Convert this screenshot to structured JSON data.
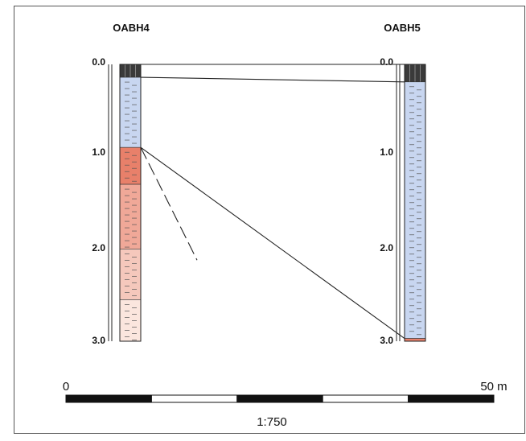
{
  "boreholes": [
    {
      "name": "OABH4",
      "depth_labels": [
        "0.0",
        "1.0",
        "2.0",
        "3.0"
      ],
      "layers": [
        {
          "from": 0.0,
          "to": 0.14,
          "material": "surface",
          "color": "#3a3a3a"
        },
        {
          "from": 0.14,
          "to": 0.9,
          "material": "silt-blue",
          "color": "#c8d6f0"
        },
        {
          "from": 0.9,
          "to": 1.3,
          "material": "clay-red",
          "color": "#e8806a"
        },
        {
          "from": 1.3,
          "to": 2.0,
          "material": "clay-red-light",
          "color": "#f0a898"
        },
        {
          "from": 2.0,
          "to": 2.55,
          "material": "clay-pink",
          "color": "#f5c8bc"
        },
        {
          "from": 2.55,
          "to": 3.0,
          "material": "sand-pale",
          "color": "#fbe6de"
        }
      ]
    },
    {
      "name": "OABH5",
      "depth_labels": [
        "0.0",
        "1.0",
        "2.0",
        "3.0"
      ],
      "layers": [
        {
          "from": 0.0,
          "to": 0.19,
          "material": "surface",
          "color": "#3a3a3a"
        },
        {
          "from": 0.19,
          "to": 2.97,
          "material": "silt-blue",
          "color": "#c8d6f0"
        },
        {
          "from": 2.97,
          "to": 3.0,
          "material": "clay-red",
          "color": "#e8806a"
        }
      ]
    }
  ],
  "correlations": [
    {
      "from_bh": 0,
      "from_depth": 0.14,
      "to_bh": 1,
      "to_depth": 0.19,
      "style": "solid"
    },
    {
      "from_bh": 0,
      "from_depth": 0.9,
      "to_bh": 1,
      "to_depth": 2.97,
      "style": "solid"
    },
    {
      "from_bh": 0,
      "from_depth": 0.9,
      "style": "dashed-short"
    }
  ],
  "scale_bar": {
    "start_label": "0",
    "end_label": "50 m",
    "ratio_label": "1:750",
    "segments": 5
  }
}
